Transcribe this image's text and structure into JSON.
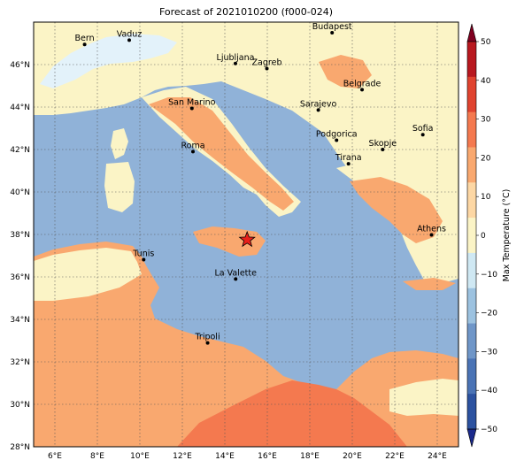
{
  "title": "Forecast of 2021010200 (f000-024)",
  "map": {
    "lon_range": [
      5,
      25
    ],
    "lat_range": [
      28,
      48
    ],
    "lon_ticks": [
      "6°E",
      "8°E",
      "10°E",
      "12°E",
      "14°E",
      "16°E",
      "18°E",
      "20°E",
      "22°E",
      "24°E"
    ],
    "lat_ticks": [
      "28°N",
      "30°N",
      "32°N",
      "34°N",
      "36°N",
      "38°N",
      "40°N",
      "42°N",
      "44°N",
      "46°N"
    ],
    "gridlines": true,
    "sea_color": "#90b2d8",
    "cities": [
      {
        "name": "Bern",
        "lon": 7.4,
        "lat": 46.95
      },
      {
        "name": "Vaduz",
        "lon": 9.5,
        "lat": 47.15
      },
      {
        "name": "Budapest",
        "lon": 19.05,
        "lat": 47.5
      },
      {
        "name": "Ljubljana",
        "lon": 14.5,
        "lat": 46.05
      },
      {
        "name": "Zagreb",
        "lon": 15.98,
        "lat": 45.81
      },
      {
        "name": "San Marino",
        "lon": 12.45,
        "lat": 43.94
      },
      {
        "name": "Sarajevo",
        "lon": 18.4,
        "lat": 43.86
      },
      {
        "name": "Belgrade",
        "lon": 20.46,
        "lat": 44.82
      },
      {
        "name": "Roma",
        "lon": 12.5,
        "lat": 41.9
      },
      {
        "name": "Podgorica",
        "lon": 19.26,
        "lat": 42.44
      },
      {
        "name": "Skopje",
        "lon": 21.43,
        "lat": 42.0
      },
      {
        "name": "Sofia",
        "lon": 23.32,
        "lat": 42.7
      },
      {
        "name": "Tirana",
        "lon": 19.82,
        "lat": 41.33
      },
      {
        "name": "Athens",
        "lon": 23.73,
        "lat": 37.98
      },
      {
        "name": "Tunis",
        "lon": 10.18,
        "lat": 36.81
      },
      {
        "name": "La Valette",
        "lon": 14.51,
        "lat": 35.9
      },
      {
        "name": "Tripoli",
        "lon": 13.19,
        "lat": 32.89
      }
    ],
    "marker": {
      "type": "star",
      "lon": 15.05,
      "lat": 37.75,
      "color": "#e8201a"
    }
  },
  "colorbar": {
    "label": "Max Temperature (°C)",
    "ticks": [
      "50",
      "40",
      "30",
      "20",
      "10",
      "0",
      "−10",
      "−20",
      "−30",
      "−40",
      "−50"
    ],
    "colors": [
      "#1b2a8c",
      "#2c52a0",
      "#4a73b5",
      "#6f96c8",
      "#9cc2e0",
      "#cfe8f3",
      "#fbf4c6",
      "#fdd7a4",
      "#f9a86f",
      "#f4794f",
      "#e0432f",
      "#b8181f",
      "#800020"
    ]
  }
}
